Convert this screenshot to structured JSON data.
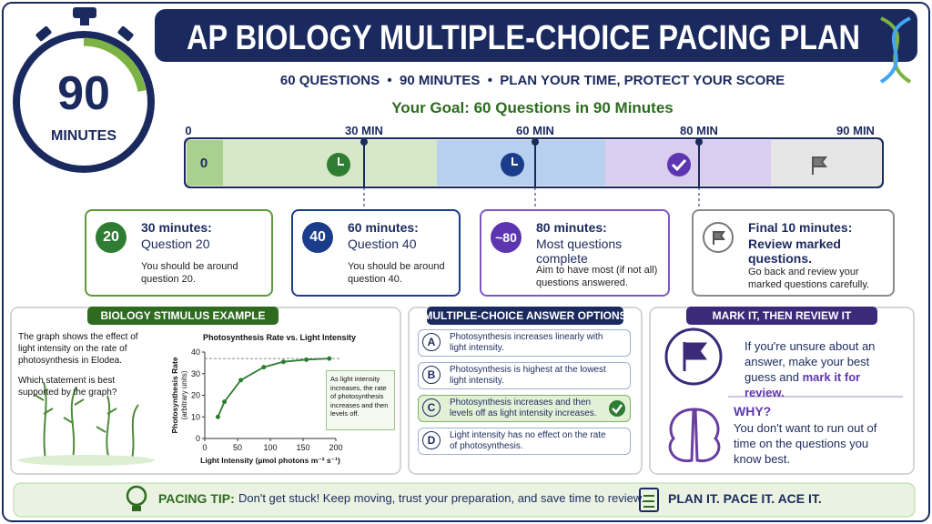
{
  "header": {
    "title": "AP BIOLOGY MULTIPLE-CHOICE PACING PLAN",
    "subtitle": "60 QUESTIONS  •  90 MINUTES  •  PLAN YOUR TIME, PROTECT YOUR SCORE",
    "timer_value": "90",
    "timer_unit": "MINUTES"
  },
  "timeline": {
    "goal": "Your Goal: 60 Questions in 90 Minutes",
    "labels": [
      "0",
      "30 MIN",
      "60 MIN",
      "80 MIN",
      "90 MIN"
    ],
    "start_marker": "0"
  },
  "milestones": [
    {
      "badge": "20",
      "heading": "30 minutes:",
      "subheading": "Question 20",
      "body": "You should be around question 20."
    },
    {
      "badge": "40",
      "heading": "60 minutes:",
      "subheading": "Question 40",
      "body": "You should be around question 40."
    },
    {
      "badge": "~80",
      "heading": "80 minutes:",
      "subheading": "Most questions complete",
      "body": "Aim to have most (if not all) questions answered."
    },
    {
      "heading": "Final 10 minutes:",
      "subheading": "Review marked questions.",
      "body": "Go back and review your marked questions carefully."
    }
  ],
  "stimulus": {
    "heading": "BIOLOGY STIMULUS EXAMPLE",
    "prompt": "The graph shows the effect of light intensity on the rate of photosynthesis in Elodea.",
    "question": "Which statement is best supported by the graph?",
    "chart_data": {
      "type": "line",
      "title": "Photosynthesis Rate vs. Light Intensity",
      "x_label": "Light Intensity (µmol photons m⁻² s⁻¹)",
      "y_label": "Photosynthesis Rate",
      "y_label_note": "(arbitrary units)",
      "annotation": "As light intensity increases, the rate of photosynthesis increases and then levels off.",
      "x": [
        20,
        30,
        55,
        90,
        120,
        155,
        190
      ],
      "values": [
        10,
        17,
        27,
        33,
        35.5,
        36.5,
        37
      ],
      "color": "#2e7d32",
      "plateau": 37,
      "xlim": [
        0,
        200
      ],
      "xticks": [
        0,
        50,
        100,
        150,
        200
      ],
      "ylim": [
        0,
        40
      ],
      "yticks": [
        0,
        10,
        20,
        30,
        40
      ]
    }
  },
  "options": {
    "heading": "MULTIPLE-CHOICE ANSWER OPTIONS",
    "items": [
      {
        "letter": "A",
        "text": "Photosynthesis increases linearly with light intensity."
      },
      {
        "letter": "B",
        "text": "Photosynthesis is highest at the lowest light intensity."
      },
      {
        "letter": "C",
        "text": "Photosynthesis increases and then levels off as light intensity increases."
      },
      {
        "letter": "D",
        "text": "Light intensity has no effect on the rate of photosynthesis."
      }
    ],
    "correct": 2
  },
  "review": {
    "heading": "MARK IT, THEN REVIEW IT",
    "text": "If you're unsure about an answer, make your best guess and",
    "emphasis": "mark it for review.",
    "why_heading": "WHY?",
    "why_text": "You don't want to run out of time on the questions you know best."
  },
  "footer": {
    "tip_label": "PACING TIP:",
    "tip_text": "Don't get stuck! Keep moving, trust your preparation, and save time to review.",
    "slogan": "PLAN IT. PACE IT. ACE IT."
  }
}
